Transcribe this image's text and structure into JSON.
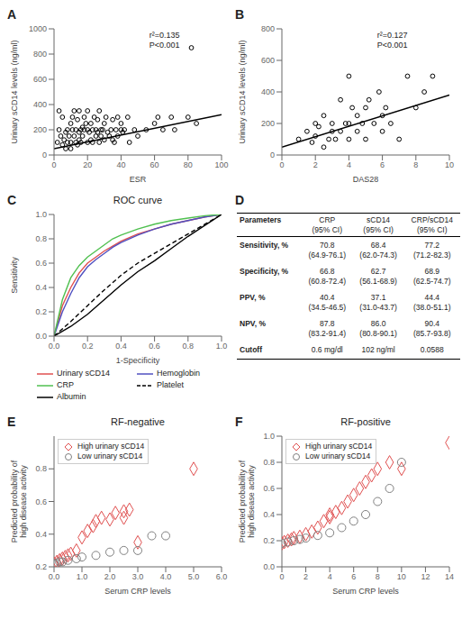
{
  "chart_data": [
    {
      "type": "scatter",
      "label": "A",
      "xlabel": "ESR",
      "ylabel": "Urinary sCD14 levels (ng/ml)",
      "annotation": "r²=0.135\nP<0.001",
      "xlim": [
        0,
        100
      ],
      "ylim": [
        0,
        1000
      ],
      "xticks": [
        0,
        20,
        40,
        60,
        80,
        100
      ],
      "yticks": [
        0,
        200,
        400,
        600,
        800,
        1000
      ],
      "series": [
        {
          "type": "scatter",
          "color": "#000000",
          "marker": "circle",
          "x": [
            2,
            3,
            3,
            4,
            5,
            5,
            6,
            7,
            7,
            8,
            8,
            9,
            10,
            10,
            10,
            11,
            11,
            12,
            12,
            13,
            13,
            14,
            14,
            15,
            15,
            15,
            16,
            16,
            17,
            17,
            18,
            18,
            19,
            20,
            20,
            20,
            21,
            22,
            22,
            23,
            23,
            24,
            25,
            25,
            26,
            26,
            27,
            27,
            28,
            28,
            29,
            30,
            30,
            31,
            32,
            33,
            34,
            35,
            35,
            36,
            37,
            38,
            38,
            40,
            40,
            41,
            42,
            44,
            45,
            48,
            50,
            55,
            60,
            62,
            65,
            70,
            72,
            80,
            82,
            85
          ],
          "values": [
            100,
            200,
            350,
            150,
            80,
            300,
            120,
            50,
            180,
            200,
            100,
            150,
            250,
            100,
            50,
            300,
            200,
            150,
            350,
            100,
            200,
            80,
            280,
            120,
            180,
            350,
            200,
            100,
            220,
            150,
            300,
            200,
            250,
            100,
            350,
            200,
            180,
            120,
            250,
            200,
            100,
            300,
            150,
            200,
            180,
            280,
            100,
            350,
            200,
            150,
            200,
            120,
            250,
            300,
            180,
            150,
            200,
            120,
            280,
            100,
            200,
            150,
            300,
            200,
            250,
            180,
            200,
            300,
            100,
            200,
            150,
            200,
            250,
            300,
            200,
            300,
            200,
            300,
            850,
            250
          ]
        },
        {
          "type": "line",
          "color": "#000000",
          "x": [
            0,
            100
          ],
          "values": [
            50,
            320
          ]
        }
      ]
    },
    {
      "type": "scatter",
      "label": "B",
      "xlabel": "DAS28",
      "ylabel": "Urinary sCD14 levels (ng/ml)",
      "annotation": "r²=0.127\nP<0.001",
      "xlim": [
        0,
        10
      ],
      "ylim": [
        0,
        800
      ],
      "xticks": [
        0,
        2,
        4,
        6,
        8,
        10
      ],
      "yticks": [
        0,
        200,
        400,
        600,
        800
      ],
      "series": [
        {
          "type": "scatter",
          "color": "#000000",
          "marker": "circle",
          "x": [
            1,
            1.5,
            1.8,
            2,
            2,
            2.2,
            2.5,
            2.5,
            2.8,
            3,
            3,
            3.2,
            3.5,
            3.5,
            3.8,
            4,
            4,
            4,
            4.2,
            4.5,
            4.5,
            4.8,
            5,
            5,
            5.2,
            5.5,
            5.8,
            6,
            6,
            6.2,
            6.5,
            7,
            7.5,
            8,
            8.5,
            9
          ],
          "values": [
            100,
            150,
            80,
            200,
            120,
            180,
            50,
            250,
            100,
            150,
            200,
            100,
            350,
            150,
            200,
            100,
            500,
            200,
            300,
            150,
            250,
            200,
            100,
            300,
            350,
            200,
            400,
            150,
            250,
            300,
            200,
            100,
            500,
            300,
            400,
            500
          ]
        },
        {
          "type": "line",
          "color": "#000000",
          "x": [
            0,
            10
          ],
          "values": [
            50,
            380
          ]
        }
      ]
    },
    {
      "type": "line",
      "label": "C",
      "title": "ROC curve",
      "xlabel": "1-Specificity",
      "ylabel": "Sensitivity",
      "legend": "bottom",
      "xlim": [
        0,
        1.0
      ],
      "ylim": [
        0,
        1.0
      ],
      "xticks": [
        {
          "value": 0,
          "label": "0.0"
        },
        0.2,
        0.4,
        0.6,
        0.8,
        {
          "value": 1.0,
          "label": "1.0"
        }
      ],
      "yticks": [
        {
          "value": 0,
          "label": "0.0"
        },
        0.2,
        0.4,
        0.6,
        0.8,
        {
          "value": 1.0,
          "label": "1.0"
        }
      ],
      "series": [
        {
          "name": "Urinary sCD14",
          "color": "#e05050",
          "line_style": "solid",
          "x": [
            0,
            0.05,
            0.1,
            0.15,
            0.2,
            0.25,
            0.3,
            0.35,
            0.4,
            0.5,
            0.6,
            0.7,
            0.8,
            0.9,
            1.0
          ],
          "values": [
            0,
            0.25,
            0.4,
            0.52,
            0.6,
            0.65,
            0.7,
            0.74,
            0.78,
            0.84,
            0.88,
            0.92,
            0.95,
            0.98,
            1.0
          ]
        },
        {
          "name": "Hemoglobin",
          "color": "#5050c0",
          "line_style": "solid",
          "x": [
            0,
            0.05,
            0.1,
            0.15,
            0.2,
            0.25,
            0.3,
            0.35,
            0.4,
            0.5,
            0.6,
            0.7,
            0.8,
            0.9,
            1.0
          ],
          "values": [
            0,
            0.2,
            0.35,
            0.48,
            0.57,
            0.63,
            0.68,
            0.73,
            0.77,
            0.83,
            0.88,
            0.92,
            0.95,
            0.98,
            1.0
          ]
        },
        {
          "name": "CRP",
          "color": "#50c050",
          "line_style": "solid",
          "x": [
            0,
            0.05,
            0.1,
            0.15,
            0.2,
            0.25,
            0.3,
            0.35,
            0.4,
            0.5,
            0.6,
            0.7,
            0.8,
            0.9,
            1.0
          ],
          "values": [
            0,
            0.3,
            0.48,
            0.58,
            0.65,
            0.7,
            0.75,
            0.8,
            0.83,
            0.88,
            0.92,
            0.95,
            0.97,
            0.99,
            1.0
          ]
        },
        {
          "name": "Platelet",
          "color": "#000000",
          "line_style": "dashed",
          "x": [
            0,
            0.1,
            0.2,
            0.3,
            0.4,
            0.5,
            0.6,
            0.7,
            0.8,
            0.9,
            1.0
          ],
          "values": [
            0,
            0.12,
            0.25,
            0.38,
            0.5,
            0.6,
            0.68,
            0.76,
            0.84,
            0.92,
            1.0
          ]
        },
        {
          "name": "Albumin",
          "color": "#000000",
          "line_style": "solid",
          "x": [
            0,
            0.1,
            0.2,
            0.3,
            0.4,
            0.5,
            0.6,
            0.7,
            0.8,
            0.9,
            1.0
          ],
          "values": [
            0,
            0.08,
            0.18,
            0.3,
            0.42,
            0.53,
            0.62,
            0.72,
            0.82,
            0.91,
            1.0
          ]
        }
      ]
    },
    {
      "type": "table",
      "label": "D",
      "headers": [
        "Parameters",
        "CRP\n(95% CI)",
        "sCD14\n(95% CI)",
        "CRP/sCD14\n(95% CI)"
      ],
      "rows": [
        [
          "Sensitivity, %",
          "70.8\n(64.9-76.1)",
          "68.4\n(62.0-74.3)",
          "77.2\n(71.2-82.3)"
        ],
        [
          "Specificity, %",
          "66.8\n(60.8-72.4)",
          "62.7\n(56.1-68.9)",
          "68.9\n(62.5-74.7)"
        ],
        [
          "PPV, %",
          "40.4\n(34.5-46.5)",
          "37.1\n(31.0-43.7)",
          "44.4\n(38.0-51.1)"
        ],
        [
          "NPV, %",
          "87.8\n(83.2-91.4)",
          "86.0\n(80.8-90.1)",
          "90.4\n(85.7-93.8)"
        ],
        [
          "Cutoff",
          "0.6 mg/dl",
          "102 ng/ml",
          "0.0588"
        ]
      ]
    },
    {
      "type": "scatter",
      "label": "E",
      "title": "RF-negative",
      "xlabel": "Serum CRP levels",
      "ylabel": "Predicted probability of\nhigh disease activity",
      "legend": "upper left",
      "xlim": [
        0,
        6.0
      ],
      "ylim": [
        0.2,
        1.0
      ],
      "xticks": [
        {
          "value": 0,
          "label": "0.0"
        },
        {
          "value": 1,
          "label": "1.0"
        },
        {
          "value": 2,
          "label": "2.0"
        },
        {
          "value": 3,
          "label": "3.0"
        },
        {
          "value": 4,
          "label": "4.0"
        },
        {
          "value": 5,
          "label": "5.0"
        },
        {
          "value": 6,
          "label": "6.0"
        }
      ],
      "yticks": [
        0.2,
        0.4,
        0.6,
        0.8
      ],
      "series": [
        {
          "name": "High urinary sCD14",
          "type": "scatter",
          "color": "#e05050",
          "marker": "diamond",
          "x": [
            0.0,
            0.1,
            0.2,
            0.3,
            0.4,
            0.5,
            0.6,
            0.8,
            1.0,
            1.2,
            1.4,
            1.5,
            1.7,
            2.0,
            2.2,
            2.5,
            2.5,
            2.7,
            3.0,
            5.0
          ],
          "values": [
            0.22,
            0.23,
            0.24,
            0.25,
            0.26,
            0.27,
            0.28,
            0.3,
            0.38,
            0.42,
            0.45,
            0.48,
            0.5,
            0.49,
            0.53,
            0.54,
            0.5,
            0.55,
            0.35,
            0.8
          ]
        },
        {
          "name": "Low urinary sCD14",
          "type": "scatter",
          "color": "#808080",
          "marker": "circle",
          "x": [
            0.0,
            0.1,
            0.2,
            0.3,
            0.5,
            0.8,
            1.0,
            1.5,
            2.0,
            2.5,
            3.0,
            3.5,
            4.0
          ],
          "values": [
            0.22,
            0.22,
            0.23,
            0.23,
            0.24,
            0.25,
            0.26,
            0.27,
            0.29,
            0.3,
            0.3,
            0.39,
            0.39
          ]
        }
      ]
    },
    {
      "type": "scatter",
      "label": "F",
      "title": "RF-positive",
      "xlabel": "Serum CRP levels",
      "ylabel": "Predicted probability of\nhigh disease activity",
      "legend": "upper left",
      "xlim": [
        0,
        14.0
      ],
      "ylim": [
        0.0,
        1.0
      ],
      "xticks": [
        0,
        2,
        4,
        6,
        8,
        10,
        12,
        14
      ],
      "yticks": [
        {
          "value": 0,
          "label": "0.0"
        },
        0.2,
        0.4,
        0.6,
        0.8,
        {
          "value": 1.0,
          "label": "1.0"
        }
      ],
      "series": [
        {
          "name": "High urinary sCD14",
          "type": "scatter",
          "color": "#e05050",
          "marker": "diamond",
          "x": [
            0.0,
            0.2,
            0.5,
            0.8,
            1.0,
            1.5,
            2.0,
            2.5,
            3.0,
            3.5,
            4.0,
            4.0,
            4.5,
            5.0,
            5.5,
            6.0,
            6.5,
            7.0,
            7.5,
            8.0,
            9.0,
            10.0,
            14.0
          ],
          "values": [
            0.18,
            0.19,
            0.2,
            0.21,
            0.22,
            0.23,
            0.25,
            0.27,
            0.3,
            0.35,
            0.38,
            0.4,
            0.42,
            0.45,
            0.5,
            0.55,
            0.6,
            0.65,
            0.7,
            0.75,
            0.8,
            0.75,
            0.95
          ]
        },
        {
          "name": "Low urinary sCD14",
          "type": "scatter",
          "color": "#808080",
          "marker": "circle",
          "x": [
            0.0,
            0.5,
            1.0,
            1.5,
            2.0,
            3.0,
            4.0,
            5.0,
            6.0,
            7.0,
            8.0,
            9.0,
            10.0
          ],
          "values": [
            0.18,
            0.19,
            0.2,
            0.21,
            0.22,
            0.24,
            0.26,
            0.3,
            0.35,
            0.4,
            0.5,
            0.6,
            0.8
          ]
        }
      ]
    }
  ]
}
